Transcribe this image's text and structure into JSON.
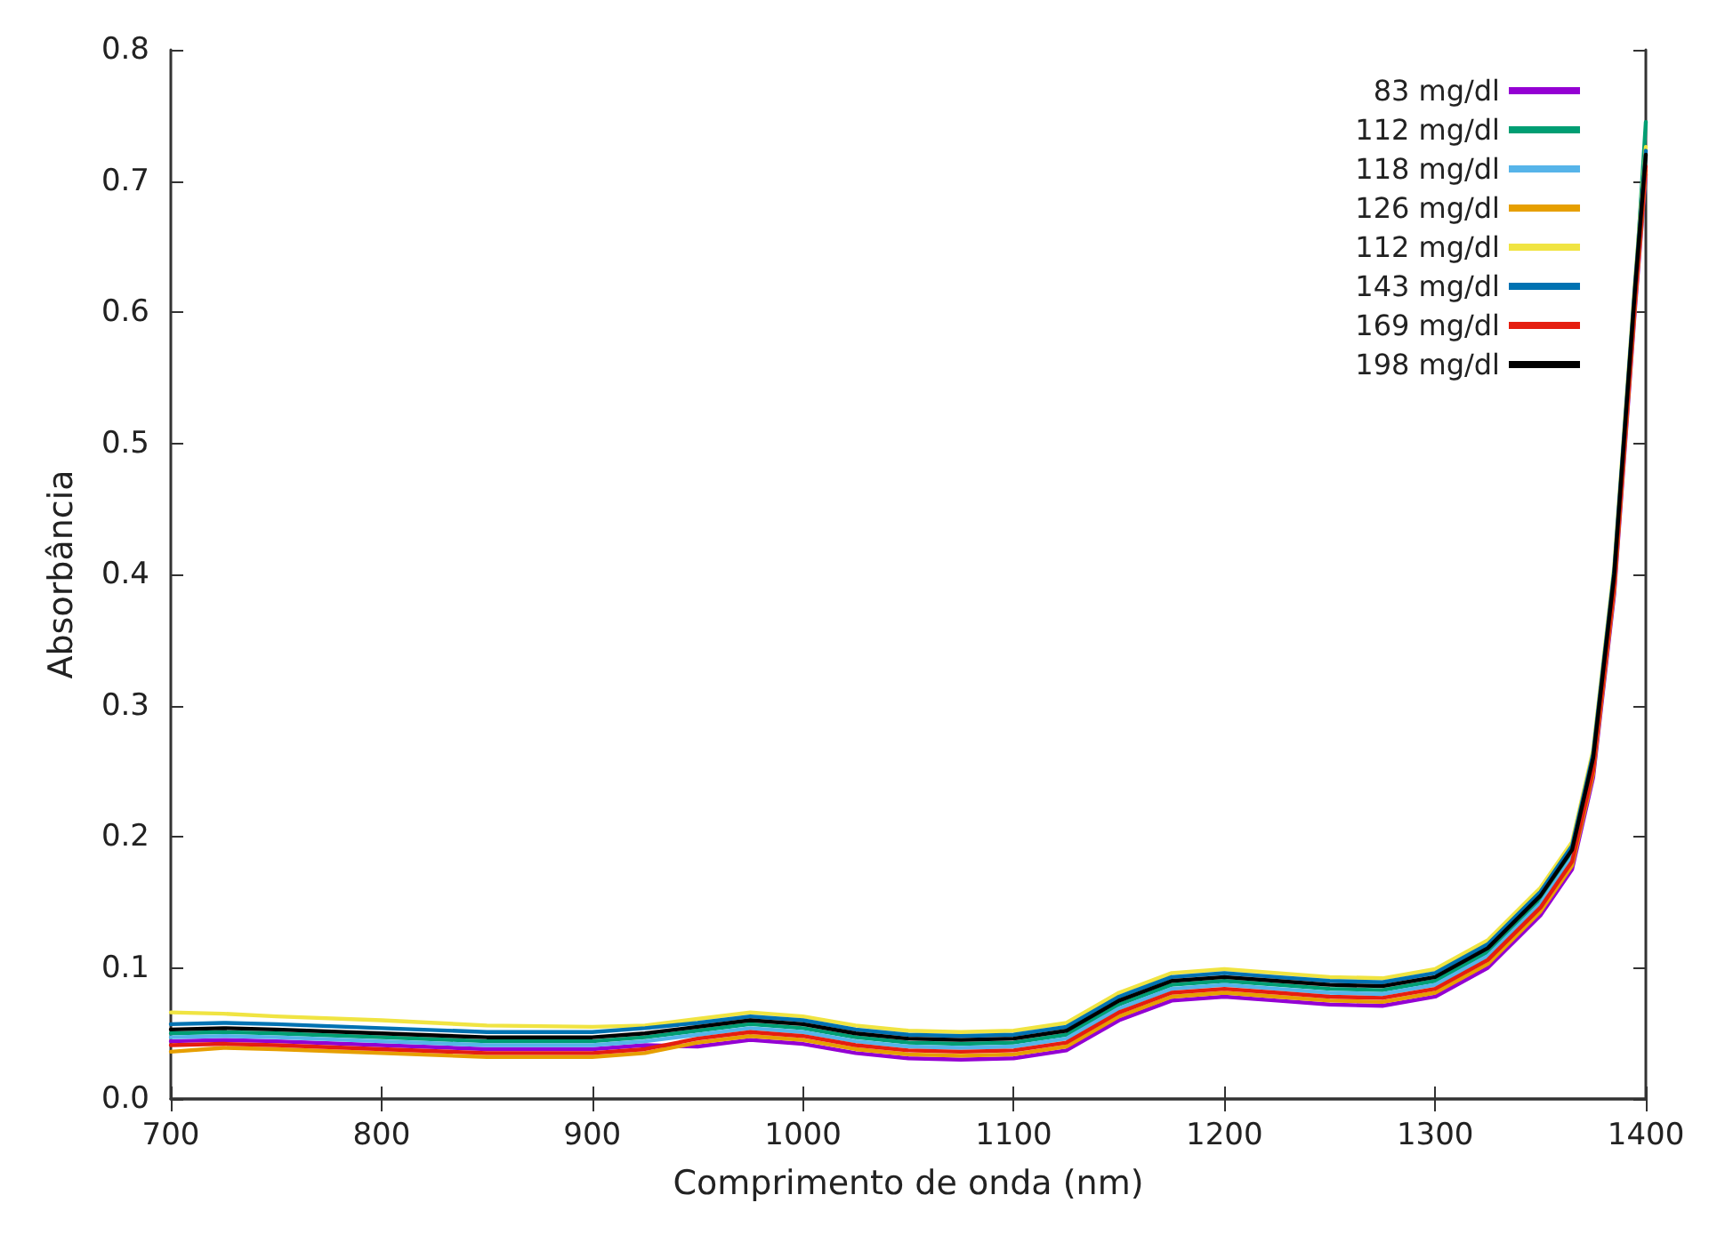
{
  "chart_data": {
    "type": "line",
    "xlabel": "Comprimento de onda (nm)",
    "ylabel": "Absorbância",
    "x": [
      700,
      725,
      750,
      800,
      850,
      900,
      925,
      950,
      975,
      1000,
      1025,
      1050,
      1075,
      1100,
      1125,
      1150,
      1175,
      1200,
      1225,
      1250,
      1275,
      1300,
      1325,
      1350,
      1365,
      1375,
      1385,
      1395,
      1400
    ],
    "series": [
      {
        "name": "83 mg/dl",
        "color": "#9400d3",
        "values": [
          0.044,
          0.045,
          0.044,
          0.041,
          0.038,
          0.038,
          0.041,
          0.04,
          0.045,
          0.042,
          0.035,
          0.031,
          0.03,
          0.031,
          0.037,
          0.06,
          0.075,
          0.078,
          0.075,
          0.072,
          0.071,
          0.078,
          0.1,
          0.14,
          0.175,
          0.245,
          0.385,
          0.605,
          0.705
        ]
      },
      {
        "name": "112 mg/dl",
        "color": "#009e73",
        "values": [
          0.05,
          0.051,
          0.05,
          0.047,
          0.044,
          0.044,
          0.047,
          0.052,
          0.057,
          0.054,
          0.047,
          0.043,
          0.042,
          0.043,
          0.049,
          0.072,
          0.087,
          0.09,
          0.087,
          0.084,
          0.083,
          0.09,
          0.112,
          0.152,
          0.187,
          0.257,
          0.397,
          0.617,
          0.745
        ]
      },
      {
        "name": "118 mg/dl",
        "color": "#56b4e9",
        "values": [
          0.047,
          0.048,
          0.047,
          0.044,
          0.041,
          0.041,
          0.044,
          0.049,
          0.054,
          0.051,
          0.044,
          0.04,
          0.039,
          0.04,
          0.046,
          0.069,
          0.084,
          0.087,
          0.084,
          0.081,
          0.08,
          0.087,
          0.109,
          0.149,
          0.184,
          0.254,
          null,
          null,
          null
        ]
      },
      {
        "name": "126 mg/dl",
        "color": "#e69f00",
        "values": [
          0.036,
          0.039,
          0.038,
          0.035,
          0.032,
          0.032,
          0.035,
          0.043,
          0.048,
          0.045,
          0.038,
          0.034,
          0.033,
          0.034,
          0.04,
          0.063,
          0.078,
          0.081,
          0.078,
          0.075,
          0.074,
          0.081,
          0.103,
          0.143,
          0.178,
          0.248,
          0.388,
          0.608,
          0.708
        ]
      },
      {
        "name": "112 mg/dl",
        "color": "#f0e442",
        "values": [
          0.066,
          0.065,
          0.063,
          0.06,
          0.056,
          0.055,
          0.056,
          0.061,
          0.066,
          0.063,
          0.056,
          0.052,
          0.051,
          0.052,
          0.058,
          0.081,
          0.096,
          0.099,
          0.096,
          0.093,
          0.092,
          0.099,
          0.121,
          0.161,
          0.196,
          0.266,
          0.406,
          0.626,
          0.726
        ]
      },
      {
        "name": "143 mg/dl",
        "color": "#0072b2",
        "values": [
          0.057,
          0.058,
          0.057,
          0.054,
          0.051,
          0.051,
          0.054,
          0.058,
          0.063,
          0.06,
          0.053,
          0.049,
          0.048,
          0.049,
          0.055,
          0.078,
          0.093,
          0.096,
          0.093,
          0.09,
          0.089,
          0.096,
          0.118,
          0.158,
          0.193,
          0.263,
          0.403,
          0.623,
          0.723
        ]
      },
      {
        "name": "169 mg/dl",
        "color": "#e51e10",
        "values": [
          0.041,
          0.042,
          0.041,
          0.038,
          0.035,
          0.035,
          0.038,
          0.046,
          0.051,
          0.048,
          0.041,
          0.037,
          0.036,
          0.037,
          0.043,
          0.066,
          0.081,
          0.084,
          0.081,
          0.078,
          0.077,
          0.084,
          0.106,
          0.146,
          0.181,
          0.251,
          0.391,
          0.611,
          0.711
        ]
      },
      {
        "name": "198 mg/dl",
        "color": "#000000",
        "values": [
          0.053,
          0.054,
          0.053,
          0.05,
          0.047,
          0.047,
          0.05,
          0.055,
          0.06,
          0.057,
          0.05,
          0.046,
          0.045,
          0.046,
          0.052,
          0.075,
          0.09,
          0.093,
          0.09,
          0.087,
          0.086,
          0.093,
          0.115,
          0.155,
          0.19,
          0.26,
          0.4,
          0.62,
          0.72
        ]
      }
    ],
    "xlim": [
      700,
      1400
    ],
    "xticks": [
      700,
      800,
      900,
      1000,
      1100,
      1200,
      1300,
      1400
    ],
    "ylim": [
      0,
      0.8
    ],
    "yticks": [
      {
        "value": 0,
        "label": "0.0"
      },
      0.1,
      0.2,
      0.3,
      0.4,
      0.5,
      0.6,
      0.7,
      0.8
    ],
    "legend": "top right",
    "grid": false,
    "marker": "none",
    "line_style": "solid"
  }
}
